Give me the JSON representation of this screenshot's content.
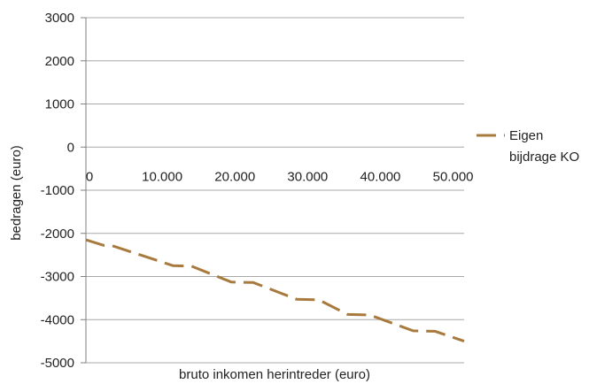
{
  "chart_data": {
    "type": "line",
    "xlabel": "bruto inkomen herintreder (euro)",
    "ylabel": "bedragen (euro)",
    "xlim": [
      0,
      52000
    ],
    "ylim": [
      -5000,
      3000
    ],
    "x_ticks": [
      {
        "value": 0,
        "label": "0"
      },
      {
        "value": 10000,
        "label": "10.000"
      },
      {
        "value": 20000,
        "label": "20.000"
      },
      {
        "value": 30000,
        "label": "30.000"
      },
      {
        "value": 40000,
        "label": "40.000"
      },
      {
        "value": 50000,
        "label": "50.000"
      }
    ],
    "y_ticks": [
      {
        "value": 3000,
        "label": "3000"
      },
      {
        "value": 2000,
        "label": "2000"
      },
      {
        "value": 1000,
        "label": "1000"
      },
      {
        "value": 0,
        "label": "0"
      },
      {
        "value": -1000,
        "label": "-1000"
      },
      {
        "value": -2000,
        "label": "-2000"
      },
      {
        "value": -3000,
        "label": "-3000"
      },
      {
        "value": -4000,
        "label": "-4000"
      },
      {
        "value": -5000,
        "label": "-5000"
      }
    ],
    "grid": true,
    "legend_position": "right",
    "series": [
      {
        "name": "Eigen bijdrage KO",
        "legend_lines": [
          "Eigen",
          "bijdrage KO"
        ],
        "color": "#a87a3d",
        "line_style": "dashed",
        "x": [
          0,
          2500,
          3500,
          12000,
          14500,
          20000,
          23000,
          29000,
          32000,
          36000,
          39000,
          45000,
          48000,
          52000
        ],
        "y": [
          -2150,
          -2280,
          -2280,
          -2750,
          -2760,
          -3130,
          -3140,
          -3530,
          -3540,
          -3880,
          -3890,
          -4260,
          -4270,
          -4500
        ]
      }
    ]
  }
}
